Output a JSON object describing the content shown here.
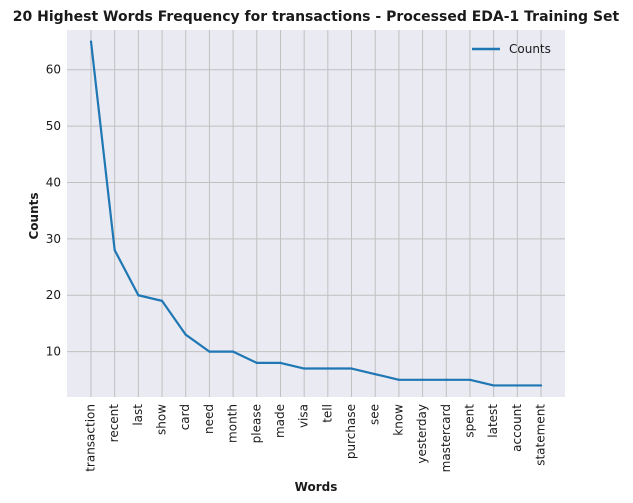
{
  "chart_data": {
    "type": "line",
    "title": "20 Highest Words Frequency for transactions - Processed EDA-1 Training Set",
    "xlabel": "Words",
    "ylabel": "Counts",
    "categories": [
      "transaction",
      "recent",
      "last",
      "show",
      "card",
      "need",
      "month",
      "please",
      "made",
      "visa",
      "tell",
      "purchase",
      "see",
      "know",
      "yesterday",
      "mastercard",
      "spent",
      "latest",
      "account",
      "statement"
    ],
    "series": [
      {
        "name": "Counts",
        "values": [
          65,
          28,
          20,
          19,
          13,
          10,
          10,
          8,
          8,
          7,
          7,
          7,
          6,
          5,
          5,
          5,
          5,
          4,
          4,
          4
        ]
      }
    ],
    "yticks": [
      10,
      20,
      30,
      40,
      50,
      60
    ],
    "ylim": [
      1.95,
      67.05
    ],
    "grid": true,
    "legend_position": "top-right",
    "colors": {
      "line": "#1f77b4",
      "plot_background": "#eaeaf2",
      "grid": "#c0c0c0"
    }
  }
}
